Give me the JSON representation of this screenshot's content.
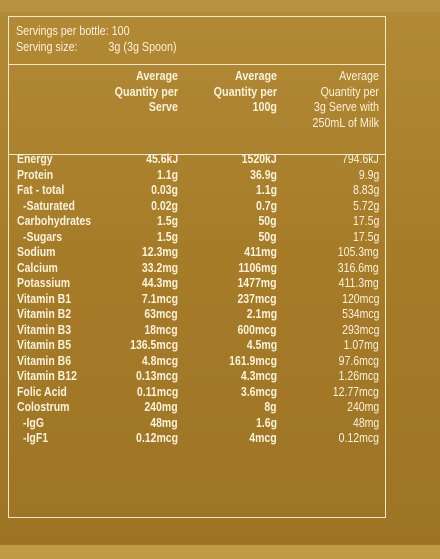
{
  "servings": {
    "per_bottle_label": "Servings per bottle:",
    "per_bottle_value": "100",
    "size_label": "Serving size:",
    "size_value": "3g (3g Spoon)"
  },
  "columns": [
    "Average\nQuantity per\nServe",
    "Average\nQuantity per\n100g",
    "Average\nQuantity per\n3g Serve with\n250mL of Milk"
  ],
  "rows": [
    {
      "label": "Energy",
      "sub": false,
      "v1": "45.6kJ",
      "v2": "1520kJ",
      "v3": "794.6kJ"
    },
    {
      "label": "Protein",
      "sub": false,
      "v1": "1.1g",
      "v2": "36.9g",
      "v3": "9.9g"
    },
    {
      "label": "Fat - total",
      "sub": false,
      "v1": "0.03g",
      "v2": "1.1g",
      "v3": "8.83g"
    },
    {
      "label": "-Saturated",
      "sub": true,
      "v1": "0.02g",
      "v2": "0.7g",
      "v3": "5.72g"
    },
    {
      "label": "Carbohydrates",
      "sub": false,
      "v1": "1.5g",
      "v2": "50g",
      "v3": "17.5g"
    },
    {
      "label": "-Sugars",
      "sub": true,
      "v1": "1.5g",
      "v2": "50g",
      "v3": "17.5g"
    },
    {
      "label": "Sodium",
      "sub": false,
      "v1": "12.3mg",
      "v2": "411mg",
      "v3": "105.3mg"
    },
    {
      "label": "Calcium",
      "sub": false,
      "v1": "33.2mg",
      "v2": "1106mg",
      "v3": "316.6mg"
    },
    {
      "label": "Potassium",
      "sub": false,
      "v1": "44.3mg",
      "v2": "1477mg",
      "v3": "411.3mg"
    },
    {
      "label": "Vitamin B1",
      "sub": false,
      "v1": "7.1mcg",
      "v2": "237mcg",
      "v3": "120mcg"
    },
    {
      "label": "Vitamin B2",
      "sub": false,
      "v1": "63mcg",
      "v2": "2.1mg",
      "v3": "534mcg"
    },
    {
      "label": "Vitamin B3",
      "sub": false,
      "v1": "18mcg",
      "v2": "600mcg",
      "v3": "293mcg"
    },
    {
      "label": "Vitamin B5",
      "sub": false,
      "v1": "136.5mcg",
      "v2": "4.5mg",
      "v3": "1.07mg"
    },
    {
      "label": "Vitamin B6",
      "sub": false,
      "v1": "4.8mcg",
      "v2": "161.9mcg",
      "v3": "97.6mcg"
    },
    {
      "label": "Vitamin B12",
      "sub": false,
      "v1": "0.13mcg",
      "v2": "4.3mcg",
      "v3": "1.26mcg"
    },
    {
      "label": "Folic Acid",
      "sub": false,
      "v1": "0.11mcg",
      "v2": "3.6mcg",
      "v3": "12.77mcg"
    },
    {
      "label": "Colostrum",
      "sub": false,
      "v1": "240mg",
      "v2": "8g",
      "v3": "240mg"
    },
    {
      "label": "-IgG",
      "sub": true,
      "v1": "48mg",
      "v2": "1.6g",
      "v3": "48mg"
    },
    {
      "label": "-IgF1",
      "sub": true,
      "v1": "0.12mcg",
      "v2": "4mcg",
      "v3": "0.12mcg"
    }
  ]
}
